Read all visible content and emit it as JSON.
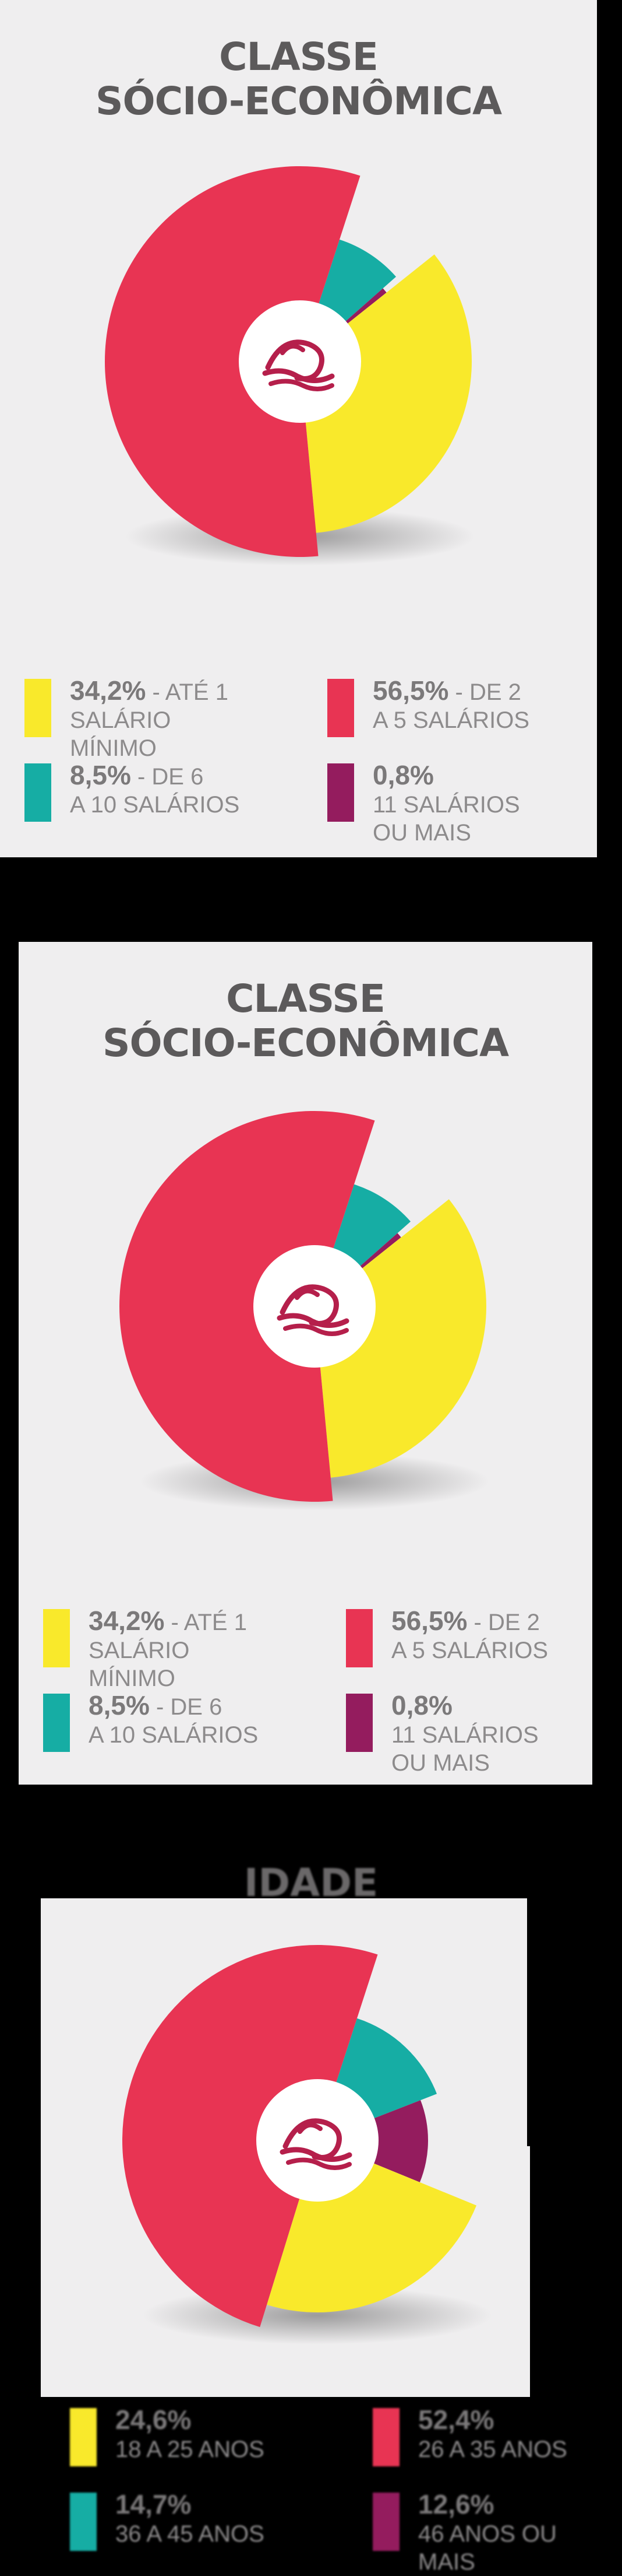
{
  "colors": {
    "yellow": "#f9e92b",
    "red": "#e83453",
    "teal": "#16ada4",
    "purple": "#941c5e",
    "panel": "#efeeef",
    "title": "#5c5a5b"
  },
  "chart_data": [
    {
      "type": "pie",
      "title": "CLASSE SÓCIO-ECONÔMICA",
      "categories": [
        "ATÉ 1 SALÁRIO MÍNIMO",
        "DE 2 A 5 SALÁRIOS",
        "DE 6 A 10 SALÁRIOS",
        "11 SALÁRIOS OU MAIS"
      ],
      "values": [
        34.2,
        56.5,
        8.5,
        0.8
      ]
    },
    {
      "type": "pie",
      "title": "CLASSE SÓCIO-ECONÔMICA",
      "categories": [
        "ATÉ 1 SALÁRIO MÍNIMO",
        "DE 2 A 5 SALÁRIOS",
        "DE 6 A 10 SALÁRIOS",
        "11 SALÁRIOS OU MAIS"
      ],
      "values": [
        34.2,
        56.5,
        8.5,
        0.8
      ]
    },
    {
      "type": "pie",
      "title": "IDADE",
      "categories": [
        "18 A 25 ANOS",
        "26 A 35 ANOS",
        "36 A 45 ANOS",
        "46 ANOS OU MAIS"
      ],
      "values": [
        24.6,
        52.4,
        14.7,
        12.6
      ]
    }
  ],
  "panel1": {
    "title_line1": "CLASSE",
    "title_line2": "SÓCIO-ECONÔMICA",
    "legend": [
      {
        "pct": "34,2%",
        "desc": " - ATÉ 1",
        "sub": "SALÁRIO MÍNIMO",
        "color": "#f9e92b"
      },
      {
        "pct": "56,5%",
        "desc": " - DE 2",
        "sub": "A 5 SALÁRIOS",
        "color": "#e83453"
      },
      {
        "pct": "8,5%",
        "desc": " - DE 6",
        "sub": "A 10 SALÁRIOS",
        "color": "#16ada4"
      },
      {
        "pct": "0,8%",
        "desc": "",
        "sub": "11 SALÁRIOS OU MAIS",
        "color": "#941c5e"
      }
    ]
  },
  "panel2": {
    "title_line1": "CLASSE",
    "title_line2": "SÓCIO-ECONÔMICA",
    "legend": [
      {
        "pct": "34,2%",
        "desc": " - ATÉ 1",
        "sub": "SALÁRIO MÍNIMO",
        "color": "#f9e92b"
      },
      {
        "pct": "56,5%",
        "desc": " - DE 2",
        "sub": "A 5 SALÁRIOS",
        "color": "#e83453"
      },
      {
        "pct": "8,5%",
        "desc": " - DE 6",
        "sub": "A 10 SALÁRIOS",
        "color": "#16ada4"
      },
      {
        "pct": "0,8%",
        "desc": "",
        "sub": "11 SALÁRIOS OU MAIS",
        "color": "#941c5e"
      }
    ]
  },
  "panel3": {
    "title": "IDADE",
    "legend": [
      {
        "pct": "24,6%",
        "sub": "18 A 25 ANOS",
        "color": "#f9e92b"
      },
      {
        "pct": "52,4%",
        "sub": "26 A 35 ANOS",
        "color": "#e83453"
      },
      {
        "pct": "14,7%",
        "sub": "36 A 45 ANOS",
        "color": "#16ada4"
      },
      {
        "pct": "12,6%",
        "sub": "46 ANOS OU MAIS",
        "color": "#941c5e"
      }
    ]
  },
  "logo_icon": "wave-logo-icon"
}
